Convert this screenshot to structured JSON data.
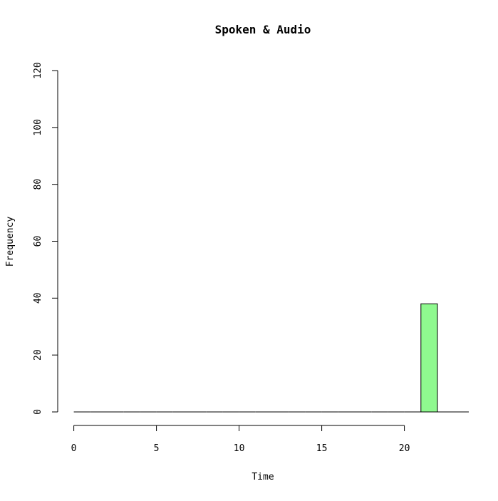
{
  "chart_data": {
    "type": "bar",
    "title": "Spoken & Audio",
    "xlabel": "Time",
    "ylabel": "Frequency",
    "xlim": [
      -0.5,
      24
    ],
    "ylim": [
      0,
      120
    ],
    "x_ticks": [
      0,
      5,
      10,
      15,
      20
    ],
    "y_ticks": [
      0,
      20,
      40,
      60,
      80,
      100,
      120
    ],
    "bin_width": 1,
    "bins": [
      {
        "start": 0,
        "end": 1,
        "value": 0
      },
      {
        "start": 1,
        "end": 2,
        "value": 0
      },
      {
        "start": 2,
        "end": 3,
        "value": 0
      },
      {
        "start": 3,
        "end": 4,
        "value": 0
      },
      {
        "start": 4,
        "end": 5,
        "value": 0
      },
      {
        "start": 5,
        "end": 6,
        "value": 0
      },
      {
        "start": 6,
        "end": 7,
        "value": 0
      },
      {
        "start": 7,
        "end": 8,
        "value": 0
      },
      {
        "start": 8,
        "end": 9,
        "value": 0
      },
      {
        "start": 9,
        "end": 10,
        "value": 0
      },
      {
        "start": 10,
        "end": 11,
        "value": 0
      },
      {
        "start": 11,
        "end": 12,
        "value": 0
      },
      {
        "start": 12,
        "end": 13,
        "value": 0
      },
      {
        "start": 13,
        "end": 14,
        "value": 0
      },
      {
        "start": 14,
        "end": 15,
        "value": 0
      },
      {
        "start": 15,
        "end": 16,
        "value": 0
      },
      {
        "start": 16,
        "end": 17,
        "value": 0
      },
      {
        "start": 17,
        "end": 18,
        "value": 0
      },
      {
        "start": 18,
        "end": 19,
        "value": 0
      },
      {
        "start": 19,
        "end": 20,
        "value": 0
      },
      {
        "start": 20,
        "end": 21,
        "value": 0
      },
      {
        "start": 21,
        "end": 22,
        "value": 38
      }
    ],
    "bar_color": "#8ff98f",
    "bar_border_color": "#000000",
    "grid": false,
    "legend": "none"
  }
}
